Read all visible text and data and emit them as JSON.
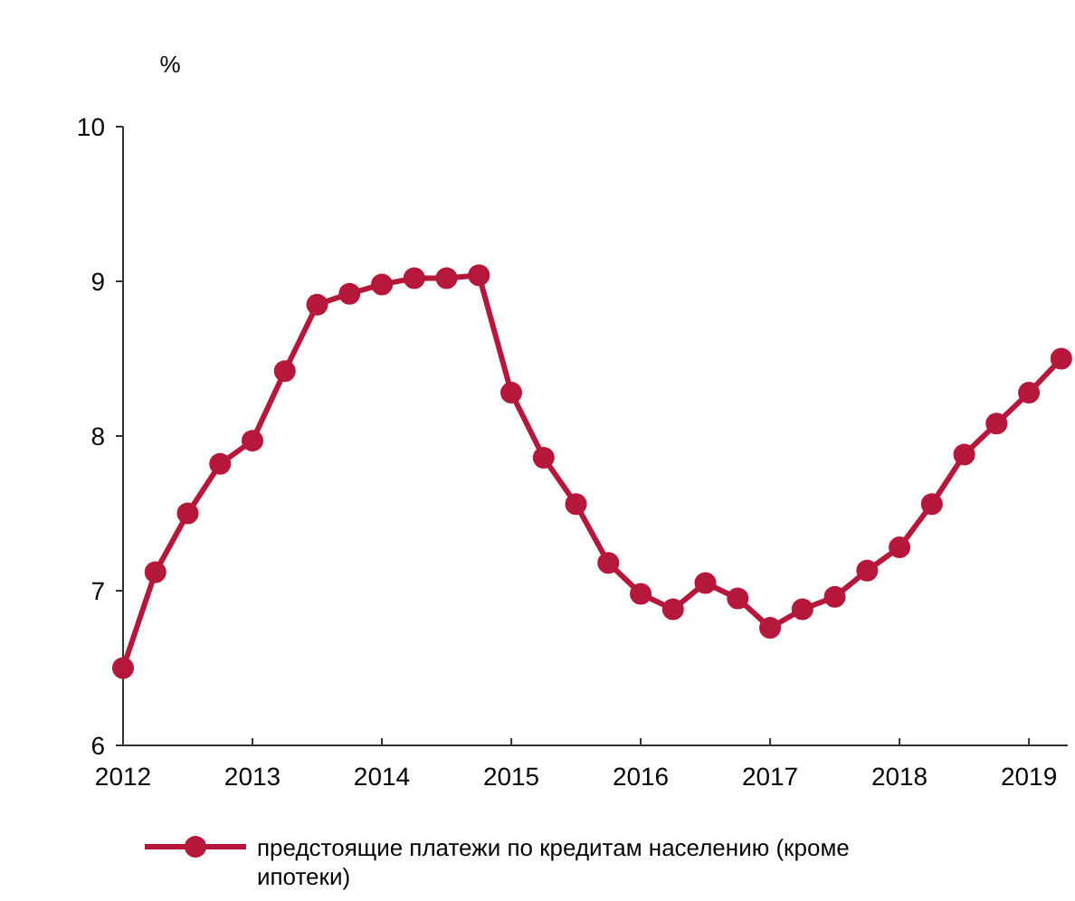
{
  "chart_data": {
    "type": "line",
    "ylabel": "%",
    "x": [
      2012,
      2012.25,
      2012.5,
      2012.75,
      2013,
      2013.25,
      2013.5,
      2013.75,
      2014,
      2014.25,
      2014.5,
      2014.75,
      2015,
      2015.25,
      2015.5,
      2015.75,
      2016,
      2016.25,
      2016.5,
      2016.75,
      2017,
      2017.25,
      2017.5,
      2017.75,
      2018,
      2018.25,
      2018.5,
      2018.75,
      2019,
      2019.25
    ],
    "series": [
      {
        "name": "предстоящие платежи по кредитам населению (кроме ипотеки)",
        "color": "#b5183a",
        "values": [
          6.5,
          7.12,
          7.5,
          7.82,
          7.97,
          8.42,
          8.85,
          8.92,
          8.98,
          9.02,
          9.02,
          9.04,
          8.28,
          7.86,
          7.56,
          7.18,
          6.98,
          6.88,
          7.05,
          6.95,
          6.76,
          6.88,
          6.96,
          7.13,
          7.28,
          7.56,
          7.88,
          8.08,
          8.28,
          8.5
        ]
      }
    ],
    "xlim": [
      2012,
      2019.3
    ],
    "xticks": [
      2012,
      2013,
      2014,
      2015,
      2016,
      2017,
      2018,
      2019
    ],
    "ylim": [
      6,
      10
    ],
    "yticks": [
      6,
      7,
      8,
      9,
      10
    ],
    "grid": false,
    "legend": "bottom",
    "marker": "circle",
    "line_style": "solid"
  }
}
